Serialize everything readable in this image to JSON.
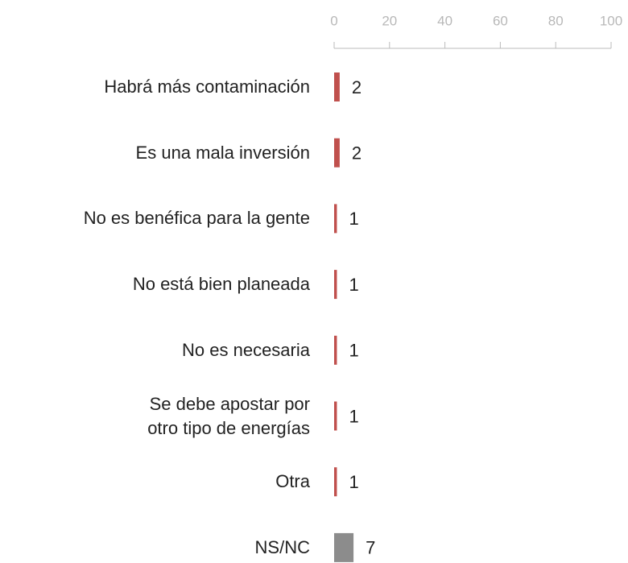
{
  "chart_data": {
    "type": "bar",
    "orientation": "horizontal",
    "categories": [
      "Habrá más contaminación",
      "Es una mala inversión",
      "No es benéfica para la gente",
      "No está bien planeada",
      "No es necesaria",
      "Se debe apostar por otro tipo de energías",
      "Otra",
      "NS/NC"
    ],
    "values": [
      2,
      2,
      1,
      1,
      1,
      1,
      1,
      7
    ],
    "colors": [
      "#c0504d",
      "#c0504d",
      "#c0504d",
      "#c0504d",
      "#c0504d",
      "#c0504d",
      "#c0504d",
      "#8c8c8c"
    ],
    "xlim": [
      0,
      100
    ],
    "xticks": [
      0,
      20,
      40,
      60,
      80,
      100
    ],
    "axis_position": "top"
  }
}
